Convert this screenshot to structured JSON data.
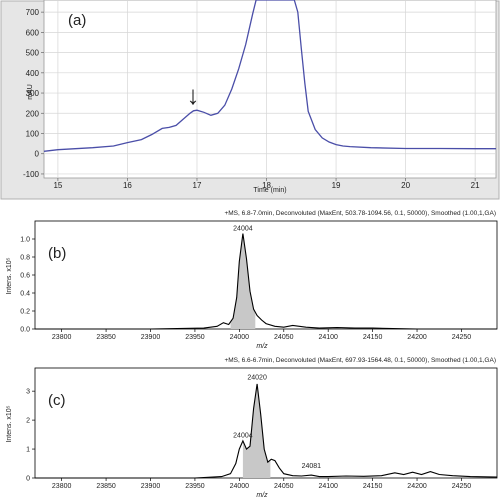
{
  "figure": {
    "panel_a": {
      "tag": "(a)",
      "xlabel": "Time (min)",
      "ylabel": "mAU",
      "xlim": [
        14.8,
        21.3
      ],
      "ylim": [
        -120,
        760
      ],
      "xticks": [
        "15",
        "16",
        "17",
        "18",
        "19",
        "20",
        "21"
      ],
      "yticks": [
        "-100",
        "0",
        "100",
        "200",
        "300",
        "400",
        "500",
        "600",
        "700"
      ],
      "arrow": "↓",
      "colors": {
        "trace": "#4a4ea8",
        "plot_bg": "#ffffff",
        "frame_bg": "#e6e6e6"
      }
    },
    "panel_b": {
      "tag": "(b)",
      "header": "+MS, 6.8-7.0min, Deconvoluted (MaxEnt, 503.78-1094.56, 0.1, 50000), Smoothed (1.00,1,GA)",
      "ylabel": "Intens. x10⁵",
      "xlabel": "m/z",
      "xlim": [
        23770,
        24290
      ],
      "ylim": [
        0,
        1.2
      ],
      "xticks": [
        "23800",
        "23850",
        "23900",
        "23950",
        "24000",
        "24050",
        "24100",
        "24150",
        "24200",
        "24250"
      ],
      "yticks": [
        "0.0",
        "0.2",
        "0.4",
        "0.6",
        "0.8",
        "1.0"
      ],
      "peak_labels": [
        {
          "x": 24004,
          "y": 1.06,
          "text": "24004"
        }
      ],
      "shade_range": [
        23990,
        24018
      ]
    },
    "panel_c": {
      "tag": "(c)",
      "header": "+MS, 6.6-6.7min, Deconvoluted (MaxEnt, 697.93-1564.48, 0.1, 50000), Smoothed (1.00,1,GA)",
      "ylabel": "Intens. x10⁵",
      "xlabel": "m/z",
      "xlim": [
        23770,
        24290
      ],
      "ylim": [
        0,
        3.8
      ],
      "xticks": [
        "23800",
        "23850",
        "23900",
        "23950",
        "24000",
        "24050",
        "24100",
        "24150",
        "24200",
        "24250"
      ],
      "yticks": [
        "0",
        "1",
        "2",
        "3"
      ],
      "peak_labels": [
        {
          "x": 24020,
          "y": 3.3,
          "text": "24020"
        },
        {
          "x": 24004,
          "y": 1.3,
          "text": "24004"
        },
        {
          "x": 24081,
          "y": 0.25,
          "text": "24081"
        }
      ],
      "shade_range": [
        24004,
        24035
      ]
    }
  },
  "chart_data": [
    {
      "type": "line",
      "panel": "a",
      "xlabel": "Time (min)",
      "ylabel": "mAU",
      "xlim": [
        14.8,
        21.3
      ],
      "ylim": [
        -120,
        760
      ],
      "series": [
        {
          "x": [
            14.8,
            15.0,
            15.5,
            15.8,
            16.0,
            16.2,
            16.35,
            16.5,
            16.6,
            16.7,
            16.8,
            16.9,
            16.95,
            17.0,
            17.1,
            17.2,
            17.3,
            17.4,
            17.5,
            17.6,
            17.7,
            17.8,
            17.85,
            18.4,
            18.45,
            18.5,
            18.55,
            18.6,
            18.7,
            18.8,
            18.9,
            19.0,
            19.1,
            19.2,
            19.5,
            20.0,
            20.5,
            21.0,
            21.3
          ],
          "y": [
            12,
            20,
            30,
            38,
            55,
            70,
            95,
            125,
            130,
            140,
            170,
            200,
            212,
            215,
            205,
            190,
            200,
            240,
            320,
            420,
            540,
            690,
            770,
            770,
            700,
            520,
            350,
            210,
            120,
            78,
            58,
            45,
            38,
            35,
            30,
            26,
            26,
            25,
            25
          ]
        }
      ]
    },
    {
      "type": "line",
      "panel": "b",
      "xlabel": "m/z",
      "ylabel": "Intens. x10⁵",
      "xlim": [
        23770,
        24290
      ],
      "ylim": [
        0,
        1.2
      ],
      "series": [
        {
          "x": [
            23770,
            23900,
            23960,
            23975,
            23982,
            23988,
            23993,
            23997,
            24000,
            24004,
            24008,
            24012,
            24016,
            24020,
            24025,
            24030,
            24040,
            24050,
            24060,
            24075,
            24090,
            24110,
            24130,
            24150,
            24200,
            24290
          ],
          "y": [
            0.0,
            0.0,
            0.01,
            0.03,
            0.07,
            0.05,
            0.12,
            0.35,
            0.75,
            1.06,
            0.78,
            0.42,
            0.22,
            0.15,
            0.1,
            0.06,
            0.03,
            0.02,
            0.04,
            0.02,
            0.01,
            0.015,
            0.01,
            0.01,
            0.0,
            0.0
          ]
        }
      ],
      "peak_labels": [
        {
          "x": 24004,
          "text": "24004"
        }
      ]
    },
    {
      "type": "line",
      "panel": "c",
      "xlabel": "m/z",
      "ylabel": "Intens. x10⁵",
      "xlim": [
        23770,
        24290
      ],
      "ylim": [
        0,
        3.8
      ],
      "series": [
        {
          "x": [
            23770,
            23950,
            23980,
            23990,
            23996,
            24000,
            24004,
            24008,
            24012,
            24016,
            24020,
            24024,
            24028,
            24032,
            24036,
            24040,
            24045,
            24050,
            24060,
            24070,
            24081,
            24090,
            24100,
            24120,
            24140,
            24160,
            24175,
            24185,
            24195,
            24205,
            24215,
            24225,
            24240,
            24260,
            24290
          ],
          "y": [
            0.0,
            0.0,
            0.05,
            0.15,
            0.5,
            1.0,
            1.28,
            1.0,
            1.1,
            2.4,
            3.25,
            2.2,
            1.0,
            0.55,
            0.65,
            0.6,
            0.35,
            0.15,
            0.08,
            0.07,
            0.1,
            0.05,
            0.05,
            0.07,
            0.06,
            0.08,
            0.18,
            0.12,
            0.2,
            0.12,
            0.22,
            0.12,
            0.08,
            0.05,
            0.03
          ]
        }
      ],
      "peak_labels": [
        {
          "x": 24020,
          "text": "24020"
        },
        {
          "x": 24004,
          "text": "24004"
        },
        {
          "x": 24081,
          "text": "24081"
        }
      ]
    }
  ]
}
